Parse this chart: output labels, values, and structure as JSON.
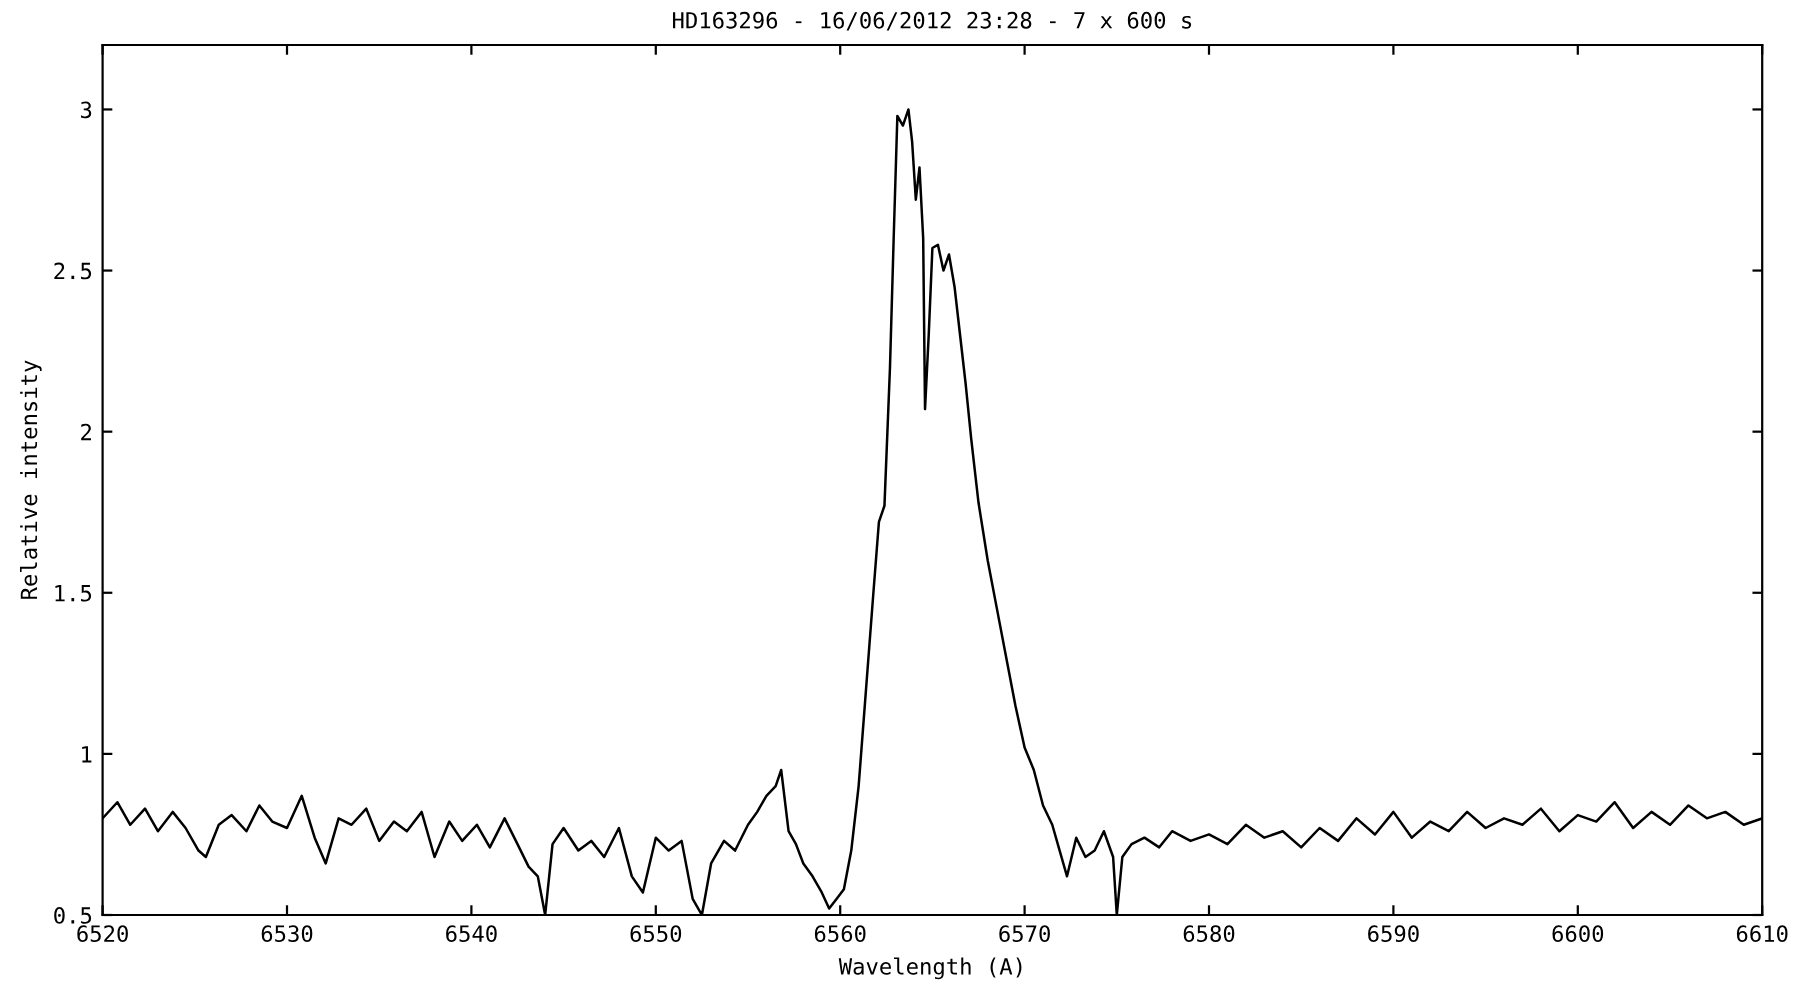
{
  "chart_data": {
    "type": "line",
    "title": "HD163296 - 16/06/2012 23:28 - 7 x 600 s",
    "xlabel": "Wavelength (A)",
    "ylabel": "Relative intensity",
    "xlim": [
      6520,
      6610
    ],
    "xticks": [
      6520,
      6530,
      6540,
      6550,
      6560,
      6570,
      6580,
      6590,
      6600,
      6610
    ],
    "ylim": [
      0.5,
      3.2
    ],
    "yticks": [
      0.5,
      1,
      1.5,
      2,
      2.5,
      3
    ],
    "grid": false,
    "marker": "none",
    "line_style": "solid",
    "series": [
      {
        "color": "#000000",
        "x": [
          6520,
          6520.8,
          6521.5,
          6522.3,
          6523,
          6523.8,
          6524.5,
          6525.2,
          6525.6,
          6526.3,
          6527,
          6527.8,
          6528.5,
          6529.2,
          6530,
          6530.8,
          6531.5,
          6532.1,
          6532.8,
          6533.5,
          6534.3,
          6535,
          6535.8,
          6536.5,
          6537.3,
          6538,
          6538.8,
          6539.5,
          6540.3,
          6541,
          6541.8,
          6542.5,
          6543.1,
          6543.6,
          6544,
          6544.4,
          6545,
          6545.8,
          6546.5,
          6547.2,
          6548,
          6548.7,
          6549.3,
          6550,
          6550.7,
          6551.4,
          6552,
          6552.5,
          6553,
          6553.7,
          6554.3,
          6555,
          6555.5,
          6556,
          6556.5,
          6556.8,
          6557.2,
          6557.6,
          6558,
          6558.5,
          6559,
          6559.4,
          6559.8,
          6560.2,
          6560.6,
          6561,
          6561.4,
          6561.8,
          6562.1,
          6562.4,
          6562.7,
          6562.9,
          6563.1,
          6563.4,
          6563.7,
          6563.9,
          6564.1,
          6564.3,
          6564.5,
          6564.6,
          6564.8,
          6565,
          6565.3,
          6565.6,
          6565.9,
          6566.2,
          6566.5,
          6566.8,
          6567.1,
          6567.5,
          6568,
          6568.5,
          6569,
          6569.5,
          6570,
          6570.5,
          6571,
          6571.5,
          6571.9,
          6572.3,
          6572.8,
          6573.3,
          6573.8,
          6574.3,
          6574.8,
          6575,
          6575.3,
          6575.8,
          6576.5,
          6577.3,
          6578,
          6579,
          6580,
          6581,
          6582,
          6583,
          6584,
          6585,
          6586,
          6587,
          6588,
          6589,
          6590,
          6591,
          6592,
          6593,
          6594,
          6595,
          6596,
          6597,
          6598,
          6599,
          6600,
          6601,
          6602,
          6603,
          6604,
          6605,
          6606,
          6607,
          6608,
          6609,
          6610
        ],
        "values": [
          0.8,
          0.85,
          0.78,
          0.83,
          0.76,
          0.82,
          0.77,
          0.7,
          0.68,
          0.78,
          0.81,
          0.76,
          0.84,
          0.79,
          0.77,
          0.87,
          0.74,
          0.66,
          0.8,
          0.78,
          0.83,
          0.73,
          0.79,
          0.76,
          0.82,
          0.68,
          0.79,
          0.73,
          0.78,
          0.71,
          0.8,
          0.72,
          0.65,
          0.62,
          0.5,
          0.72,
          0.77,
          0.7,
          0.73,
          0.68,
          0.77,
          0.62,
          0.57,
          0.74,
          0.7,
          0.73,
          0.55,
          0.5,
          0.66,
          0.73,
          0.7,
          0.78,
          0.82,
          0.87,
          0.9,
          0.95,
          0.76,
          0.72,
          0.66,
          0.62,
          0.57,
          0.52,
          0.55,
          0.58,
          0.7,
          0.9,
          1.2,
          1.5,
          1.72,
          1.77,
          2.2,
          2.6,
          2.98,
          2.95,
          3.0,
          2.9,
          2.72,
          2.82,
          2.6,
          2.07,
          2.3,
          2.57,
          2.58,
          2.5,
          2.55,
          2.45,
          2.3,
          2.15,
          1.98,
          1.78,
          1.6,
          1.45,
          1.3,
          1.15,
          1.02,
          0.95,
          0.84,
          0.78,
          0.7,
          0.62,
          0.74,
          0.68,
          0.7,
          0.76,
          0.68,
          0.5,
          0.68,
          0.72,
          0.74,
          0.71,
          0.76,
          0.73,
          0.75,
          0.72,
          0.78,
          0.74,
          0.76,
          0.71,
          0.77,
          0.73,
          0.8,
          0.75,
          0.82,
          0.74,
          0.79,
          0.76,
          0.82,
          0.77,
          0.8,
          0.78,
          0.83,
          0.76,
          0.81,
          0.79,
          0.85,
          0.77,
          0.82,
          0.78,
          0.84,
          0.8,
          0.82,
          0.78,
          0.8
        ]
      }
    ]
  }
}
